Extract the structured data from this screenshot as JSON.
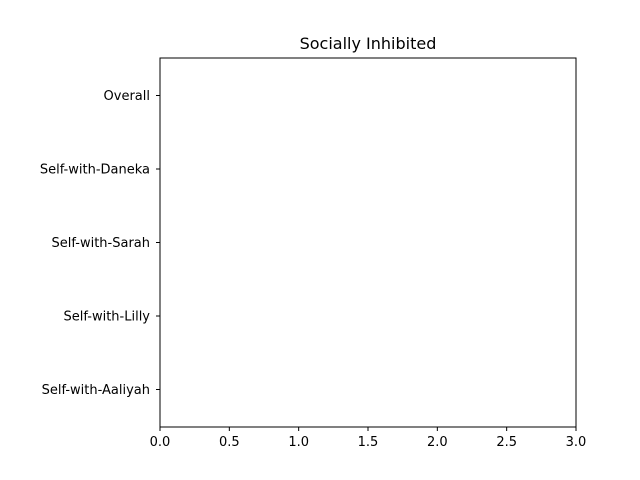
{
  "chart_data": {
    "type": "bar",
    "orientation": "horizontal",
    "title": "Socially Inhibited",
    "xlabel": "",
    "ylabel": "",
    "categories": [
      "Overall",
      "Self-with-Daneka",
      "Self-with-Sarah",
      "Self-with-Lilly",
      "Self-with-Aaliyah"
    ],
    "values": [
      0,
      0,
      0,
      0,
      0
    ],
    "xlim": [
      0,
      3.0
    ],
    "xticks": [
      "0.0",
      "0.5",
      "1.0",
      "1.5",
      "2.0",
      "2.5",
      "3.0"
    ],
    "grid": false,
    "legend": "none",
    "colors": {
      "axes": "#000000",
      "background": "#ffffff"
    }
  }
}
